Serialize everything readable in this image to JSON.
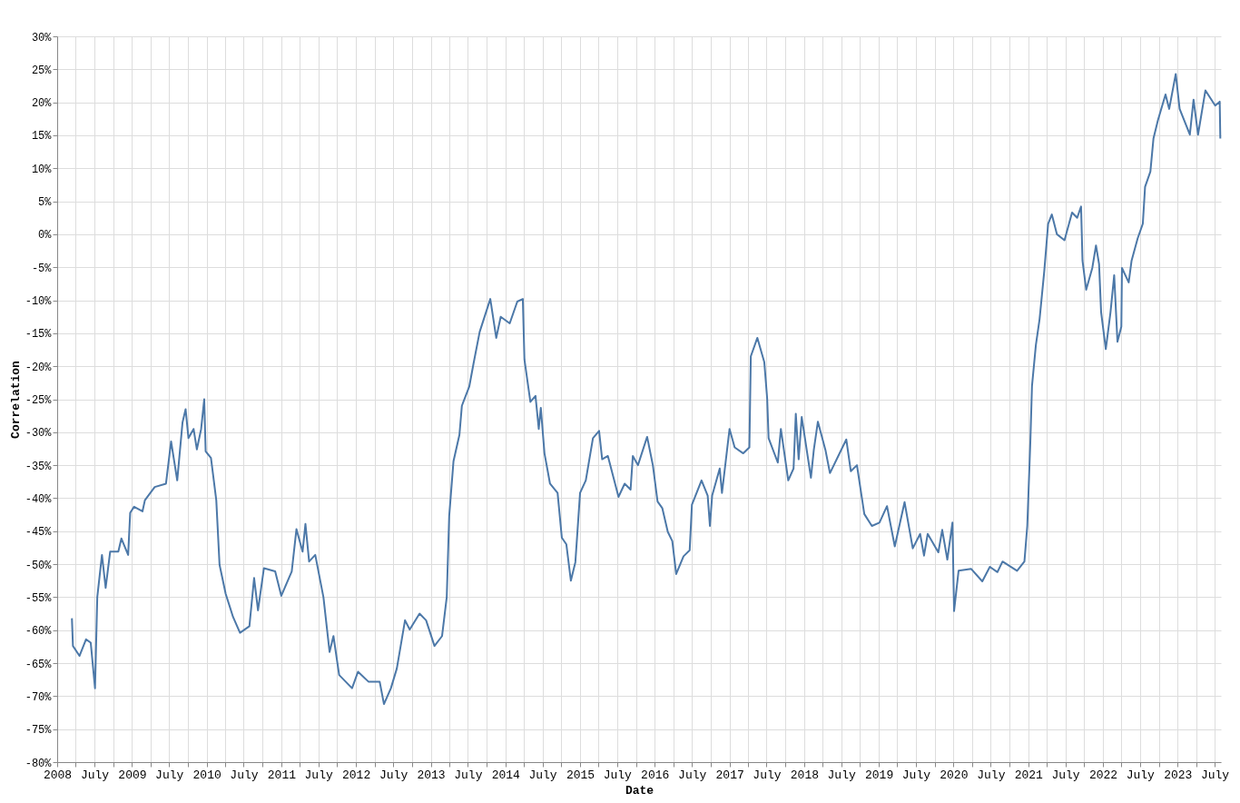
{
  "chart_data": {
    "type": "line",
    "xlabel": "Date",
    "ylabel": "Correlation",
    "grid": true,
    "xlim": [
      "2008-01-01",
      "2023-08-01"
    ],
    "ylim": [
      -80,
      30
    ],
    "xticks": [
      {
        "value": "2008-01-01",
        "label": "2008"
      },
      {
        "value": "2008-04-01",
        "label": null
      },
      {
        "value": "2008-07-01",
        "label": "July"
      },
      {
        "value": "2008-10-01",
        "label": null
      },
      {
        "value": "2009-01-01",
        "label": "2009"
      },
      {
        "value": "2009-04-01",
        "label": null
      },
      {
        "value": "2009-07-01",
        "label": "July"
      },
      {
        "value": "2009-10-01",
        "label": null
      },
      {
        "value": "2010-01-01",
        "label": "2010"
      },
      {
        "value": "2010-04-01",
        "label": null
      },
      {
        "value": "2010-07-01",
        "label": "July"
      },
      {
        "value": "2010-10-01",
        "label": null
      },
      {
        "value": "2011-01-01",
        "label": "2011"
      },
      {
        "value": "2011-04-01",
        "label": null
      },
      {
        "value": "2011-07-01",
        "label": "July"
      },
      {
        "value": "2011-10-01",
        "label": null
      },
      {
        "value": "2012-01-01",
        "label": "2012"
      },
      {
        "value": "2012-04-01",
        "label": null
      },
      {
        "value": "2012-07-01",
        "label": "July"
      },
      {
        "value": "2012-10-01",
        "label": null
      },
      {
        "value": "2013-01-01",
        "label": "2013"
      },
      {
        "value": "2013-04-01",
        "label": null
      },
      {
        "value": "2013-07-01",
        "label": "July"
      },
      {
        "value": "2013-10-01",
        "label": null
      },
      {
        "value": "2014-01-01",
        "label": "2014"
      },
      {
        "value": "2014-04-01",
        "label": null
      },
      {
        "value": "2014-07-01",
        "label": "July"
      },
      {
        "value": "2014-10-01",
        "label": null
      },
      {
        "value": "2015-01-01",
        "label": "2015"
      },
      {
        "value": "2015-04-01",
        "label": null
      },
      {
        "value": "2015-07-01",
        "label": "July"
      },
      {
        "value": "2015-10-01",
        "label": null
      },
      {
        "value": "2016-01-01",
        "label": "2016"
      },
      {
        "value": "2016-04-01",
        "label": null
      },
      {
        "value": "2016-07-01",
        "label": "July"
      },
      {
        "value": "2016-10-01",
        "label": null
      },
      {
        "value": "2017-01-01",
        "label": "2017"
      },
      {
        "value": "2017-04-01",
        "label": null
      },
      {
        "value": "2017-07-01",
        "label": "July"
      },
      {
        "value": "2017-10-01",
        "label": null
      },
      {
        "value": "2018-01-01",
        "label": "2018"
      },
      {
        "value": "2018-04-01",
        "label": null
      },
      {
        "value": "2018-07-01",
        "label": "July"
      },
      {
        "value": "2018-10-01",
        "label": null
      },
      {
        "value": "2019-01-01",
        "label": "2019"
      },
      {
        "value": "2019-04-01",
        "label": null
      },
      {
        "value": "2019-07-01",
        "label": "July"
      },
      {
        "value": "2019-10-01",
        "label": null
      },
      {
        "value": "2020-01-01",
        "label": "2020"
      },
      {
        "value": "2020-04-01",
        "label": null
      },
      {
        "value": "2020-07-01",
        "label": "July"
      },
      {
        "value": "2020-10-01",
        "label": null
      },
      {
        "value": "2021-01-01",
        "label": "2021"
      },
      {
        "value": "2021-04-01",
        "label": null
      },
      {
        "value": "2021-07-01",
        "label": "July"
      },
      {
        "value": "2021-10-01",
        "label": null
      },
      {
        "value": "2022-01-01",
        "label": "2022"
      },
      {
        "value": "2022-04-01",
        "label": null
      },
      {
        "value": "2022-07-01",
        "label": "July"
      },
      {
        "value": "2022-10-01",
        "label": null
      },
      {
        "value": "2023-01-01",
        "label": "2023"
      },
      {
        "value": "2023-04-01",
        "label": null
      },
      {
        "value": "2023-07-01",
        "label": "July"
      }
    ],
    "yticks": [
      {
        "value": -80,
        "label": "-80%"
      },
      {
        "value": -75,
        "label": "-75%"
      },
      {
        "value": -70,
        "label": "-70%"
      },
      {
        "value": -65,
        "label": "-65%"
      },
      {
        "value": -60,
        "label": "-60%"
      },
      {
        "value": -55,
        "label": "-55%"
      },
      {
        "value": -50,
        "label": "-50%"
      },
      {
        "value": -45,
        "label": "-45%"
      },
      {
        "value": -40,
        "label": "-40%"
      },
      {
        "value": -35,
        "label": "-35%"
      },
      {
        "value": -30,
        "label": "-30%"
      },
      {
        "value": -25,
        "label": "-25%"
      },
      {
        "value": -20,
        "label": "-20%"
      },
      {
        "value": -15,
        "label": "-15%"
      },
      {
        "value": -10,
        "label": "-10%"
      },
      {
        "value": -5,
        "label": "-5%"
      },
      {
        "value": 0,
        "label": "0%"
      },
      {
        "value": 5,
        "label": "5%"
      },
      {
        "value": 10,
        "label": "10%"
      },
      {
        "value": 15,
        "label": "15%"
      },
      {
        "value": 20,
        "label": "20%"
      },
      {
        "value": 25,
        "label": "25%"
      },
      {
        "value": 30,
        "label": "30%"
      }
    ],
    "series": [
      {
        "color": "#4c78a8",
        "x": [
          "2008-03-13",
          "2008-03-18",
          "2008-04-19",
          "2008-05-21",
          "2008-06-13",
          "2008-07-04",
          "2008-07-15",
          "2008-08-07",
          "2008-08-25",
          "2008-09-16",
          "2008-10-26",
          "2008-11-10",
          "2008-12-13",
          "2008-12-23",
          "2009-01-11",
          "2009-02-21",
          "2009-03-05",
          "2009-04-22",
          "2009-06-16",
          "2009-07-11",
          "2009-08-10",
          "2009-09-05",
          "2009-09-20",
          "2009-10-04",
          "2009-10-29",
          "2009-11-14",
          "2009-12-05",
          "2009-12-20",
          "2009-12-27",
          "2010-01-22",
          "2010-02-17",
          "2010-03-05",
          "2010-04-04",
          "2010-05-10",
          "2010-06-13",
          "2010-07-29",
          "2010-08-21",
          "2010-09-09",
          "2010-10-08",
          "2010-12-02",
          "2011-01-01",
          "2011-02-21",
          "2011-03-16",
          "2011-04-15",
          "2011-04-29",
          "2011-05-17",
          "2011-06-16",
          "2011-07-26",
          "2011-08-25",
          "2011-09-13",
          "2011-10-11",
          "2011-12-13",
          "2012-01-11",
          "2012-03-02",
          "2012-04-26",
          "2012-05-17",
          "2012-06-20",
          "2012-07-19",
          "2012-08-28",
          "2012-09-20",
          "2012-11-07",
          "2012-12-09",
          "2013-01-19",
          "2013-02-25",
          "2013-03-20",
          "2013-04-01",
          "2013-04-22",
          "2013-05-21",
          "2013-06-02",
          "2013-07-08",
          "2013-07-29",
          "2013-08-28",
          "2013-10-19",
          "2013-11-17",
          "2013-12-09",
          "2014-01-22",
          "2014-02-28",
          "2014-03-27",
          "2014-04-04",
          "2014-05-03",
          "2014-05-28",
          "2014-06-13",
          "2014-06-23",
          "2014-07-11",
          "2014-08-07",
          "2014-09-13",
          "2014-10-04",
          "2014-10-26",
          "2014-11-17",
          "2014-12-09",
          "2015-01-01",
          "2015-01-29",
          "2015-03-05",
          "2015-04-04",
          "2015-04-19",
          "2015-05-17",
          "2015-07-08",
          "2015-08-07",
          "2015-09-05",
          "2015-09-16",
          "2015-10-11",
          "2015-11-25",
          "2015-12-23",
          "2016-01-15",
          "2016-02-07",
          "2016-03-05",
          "2016-03-27",
          "2016-04-15",
          "2016-05-21",
          "2016-06-20",
          "2016-07-01",
          "2016-08-17",
          "2016-09-16",
          "2016-09-27",
          "2016-10-08",
          "2016-11-14",
          "2016-11-25",
          "2017-01-01",
          "2017-01-26",
          "2017-03-09",
          "2017-04-08",
          "2017-04-15",
          "2017-05-17",
          "2017-06-20",
          "2017-07-04",
          "2017-07-11",
          "2017-08-25",
          "2017-09-09",
          "2017-10-15",
          "2017-11-10",
          "2017-11-21",
          "2017-12-05",
          "2017-12-20",
          "2018-02-03",
          "2018-02-17",
          "2018-03-09",
          "2018-04-15",
          "2018-05-07",
          "2018-07-26",
          "2018-08-17",
          "2018-09-16",
          "2018-10-22",
          "2018-11-28",
          "2019-01-04",
          "2019-02-10",
          "2019-03-20",
          "2019-05-07",
          "2019-06-16",
          "2019-07-22",
          "2019-08-10",
          "2019-08-28",
          "2019-10-19",
          "2019-11-07",
          "2019-12-02",
          "2019-12-27",
          "2020-01-04",
          "2020-01-26",
          "2020-03-27",
          "2020-05-21",
          "2020-06-27",
          "2020-08-03",
          "2020-08-28",
          "2020-11-07",
          "2020-12-13",
          "2020-12-27",
          "2021-01-11",
          "2021-01-19",
          "2021-02-07",
          "2021-02-25",
          "2021-03-20",
          "2021-04-08",
          "2021-04-26",
          "2021-05-21",
          "2021-06-27",
          "2021-08-03",
          "2021-08-28",
          "2021-09-16",
          "2021-09-23",
          "2021-10-11",
          "2021-11-10",
          "2021-11-28",
          "2021-12-13",
          "2021-12-23",
          "2022-01-15",
          "2022-02-07",
          "2022-02-25",
          "2022-03-13",
          "2022-04-01",
          "2022-04-04",
          "2022-05-07",
          "2022-05-21",
          "2022-06-20",
          "2022-07-15",
          "2022-07-26",
          "2022-08-21",
          "2022-09-05",
          "2022-09-27",
          "2022-11-03",
          "2022-11-21",
          "2022-12-23",
          "2023-01-11",
          "2023-03-02",
          "2023-03-20",
          "2023-04-11",
          "2023-05-17",
          "2023-07-04",
          "2023-07-26",
          "2023-07-29"
        ],
        "values": [
          -58.2,
          -62.4,
          -63.9,
          -61.4,
          -61.9,
          -68.8,
          -55.0,
          -48.6,
          -53.6,
          -48.1,
          -48.1,
          -46.1,
          -48.6,
          -42.2,
          -41.3,
          -42.0,
          -40.3,
          -38.3,
          -37.8,
          -31.4,
          -37.3,
          -28.5,
          -26.5,
          -30.9,
          -29.5,
          -32.6,
          -29.5,
          -25.0,
          -32.9,
          -33.9,
          -40.3,
          -50.1,
          -54.5,
          -58.0,
          -60.4,
          -59.4,
          -52.1,
          -57.0,
          -50.6,
          -51.1,
          -54.8,
          -51.1,
          -44.7,
          -48.1,
          -43.9,
          -49.6,
          -48.6,
          -55.0,
          -63.3,
          -60.9,
          -66.8,
          -68.8,
          -66.3,
          -67.8,
          -67.8,
          -71.2,
          -68.8,
          -65.8,
          -58.5,
          -59.9,
          -57.5,
          -58.5,
          -62.4,
          -60.9,
          -55.0,
          -42.7,
          -34.4,
          -30.4,
          -26.0,
          -23.1,
          -19.6,
          -14.8,
          -9.8,
          -15.7,
          -12.5,
          -13.5,
          -10.2,
          -9.8,
          -19.0,
          -25.4,
          -24.5,
          -29.5,
          -26.3,
          -33.2,
          -37.8,
          -39.2,
          -46.0,
          -47.0,
          -52.5,
          -49.7,
          -39.2,
          -37.3,
          -30.9,
          -29.8,
          -34.1,
          -33.6,
          -39.8,
          -37.8,
          -38.7,
          -33.6,
          -35.0,
          -30.7,
          -35.0,
          -40.5,
          -41.5,
          -45.1,
          -46.5,
          -51.5,
          -48.8,
          -47.9,
          -41.0,
          -37.3,
          -39.6,
          -44.2,
          -39.6,
          -35.5,
          -39.2,
          -29.5,
          -32.3,
          -33.2,
          -32.3,
          -18.5,
          -15.7,
          -19.4,
          -24.9,
          -30.9,
          -34.6,
          -29.5,
          -37.3,
          -35.5,
          -27.2,
          -34.1,
          -27.7,
          -36.9,
          -32.7,
          -28.4,
          -32.7,
          -36.2,
          -31.1,
          -35.9,
          -35.0,
          -42.4,
          -44.2,
          -43.7,
          -41.2,
          -47.3,
          -40.6,
          -47.6,
          -45.4,
          -48.7,
          -45.4,
          -48.2,
          -44.8,
          -49.3,
          -43.7,
          -57.1,
          -51.0,
          -50.7,
          -52.6,
          -50.4,
          -51.2,
          -49.6,
          -51.0,
          -49.6,
          -44.2,
          -31.4,
          -23.0,
          -16.8,
          -12.9,
          -5.6,
          1.6,
          3.0,
          0.0,
          -0.9,
          3.3,
          2.5,
          4.2,
          -4.0,
          -8.4,
          -5.1,
          -1.7,
          -4.5,
          -11.8,
          -17.4,
          -11.8,
          -6.2,
          -16.3,
          -14.0,
          -5.1,
          -7.3,
          -4.0,
          -0.6,
          1.6,
          7.2,
          9.5,
          14.5,
          17.3,
          21.2,
          19.0,
          24.3,
          19.0,
          15.1,
          20.4,
          15.1,
          21.8,
          19.5,
          20.1,
          14.5
        ]
      }
    ]
  }
}
